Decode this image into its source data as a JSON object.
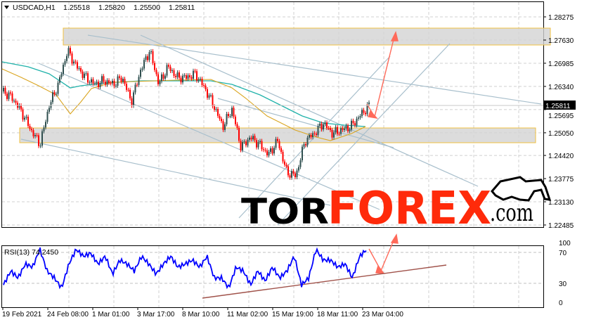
{
  "header": {
    "symbol": "USDCAD,H1",
    "open": "1.25518",
    "high": "1.25820",
    "low": "1.25500",
    "close": "1.25811",
    "dropdown_icon": "triangle-down-icon"
  },
  "price_axis": {
    "ticks": [
      "1.28275",
      "1.27630",
      "1.26985",
      "1.26340",
      "1.25695",
      "1.25050",
      "1.24420",
      "1.23775",
      "1.23130",
      "1.22485"
    ],
    "tick_values": [
      1.28275,
      1.2763,
      1.26985,
      1.2634,
      1.25695,
      1.2505,
      1.2442,
      1.23775,
      1.2313,
      1.22485
    ],
    "current_price": "1.25811"
  },
  "rsi": {
    "label": "RSI(13) 74.2450",
    "ticks": [
      "100",
      "70",
      "30",
      "0"
    ],
    "levels": [
      70,
      30
    ]
  },
  "time_axis": {
    "ticks": [
      "19 Feb 2021",
      "24 Feb 08:00",
      "1 Mar 01:00",
      "3 Mar 17:00",
      "8 Mar 10:00",
      "11 Mar 02:00",
      "15 Mar 19:00",
      "18 Mar 11:00",
      "23 Mar 04:00"
    ]
  },
  "logo": {
    "part1": "TOR",
    "part2": "FOREX",
    "part3": ".com"
  },
  "colors": {
    "bull_candle": "#2f4f4f",
    "bear_candle": "#ff0000",
    "ma_fast": "#daa520",
    "ma_slow": "#20b2aa",
    "rsi_line": "#0000ff",
    "zone_fill": "#d3d3d3",
    "zone_border": "#f0c040",
    "forecast_arrow": "#ff6a5a",
    "trendline": "#a8bfcc",
    "rsi_trendline": "#a0524a",
    "logo_red": "#ff2a0a"
  },
  "chart_data": [
    {
      "type": "candlestick",
      "title": "USDCAD,H1",
      "ylim": [
        1.22485,
        1.28275
      ],
      "grid": true,
      "close_path": [
        1.262,
        1.2601,
        1.2562,
        1.2513,
        1.2473,
        1.2581,
        1.264,
        1.2734,
        1.2689,
        1.2659,
        1.264,
        1.265,
        1.264,
        1.2659,
        1.2591,
        1.2679,
        1.2734,
        1.264,
        1.2689,
        1.2659,
        1.2659,
        1.2669,
        1.263,
        1.2581,
        1.2522,
        1.2571,
        1.2464,
        1.2493,
        1.2473,
        1.2444,
        1.2483,
        1.2395,
        1.2385,
        1.2483,
        1.2503,
        1.2532,
        1.2503,
        1.2513,
        1.2522,
        1.2552,
        1.2581
      ],
      "indicators": [
        "moving-average-fast",
        "moving-average-slow"
      ]
    },
    {
      "type": "line",
      "title": "RSI(13) 74.2450",
      "ylim": [
        0,
        100
      ],
      "values": [
        28,
        46,
        37,
        55,
        51,
        74,
        46,
        37,
        24,
        55,
        74,
        65,
        69,
        55,
        65,
        42,
        60,
        55,
        46,
        65,
        55,
        42,
        55,
        65,
        51,
        55,
        60,
        51,
        65,
        37,
        37,
        24,
        51,
        46,
        28,
        46,
        33,
        51,
        37,
        46,
        65,
        28,
        37,
        74,
        60,
        60,
        51,
        55,
        37,
        65,
        74
      ]
    }
  ]
}
